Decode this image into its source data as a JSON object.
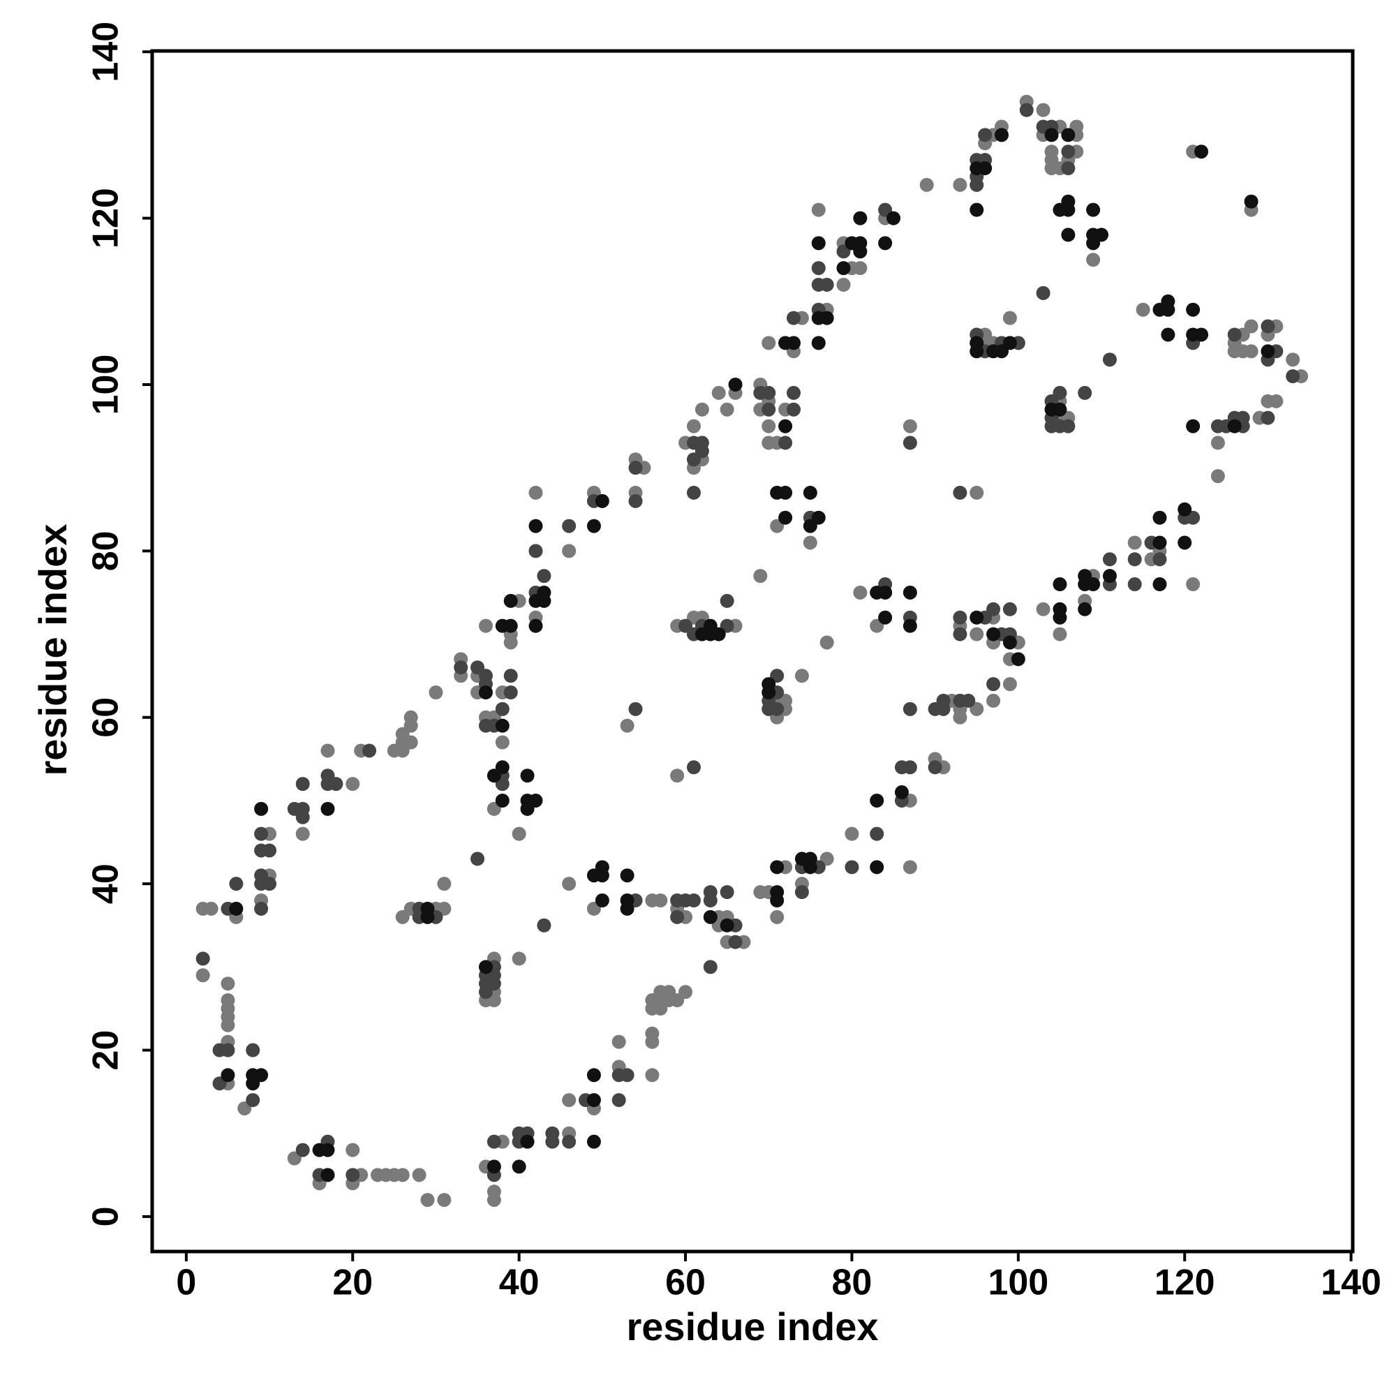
{
  "chart_data": {
    "type": "scatter",
    "xlabel": "residue index",
    "ylabel": "residue index",
    "xlim": [
      -4.1,
      140.2
    ],
    "ylim": [
      -4.2,
      140.1
    ],
    "xticks": [
      0,
      20,
      40,
      60,
      80,
      100,
      120,
      140
    ],
    "yticks": [
      0,
      20,
      40,
      60,
      80,
      100,
      120,
      140
    ],
    "series": [
      {
        "color": "#7a7a7a",
        "x": [
          2,
          3,
          6,
          2,
          5,
          5,
          5,
          5,
          5,
          5,
          5,
          7,
          10,
          10,
          9,
          14,
          17,
          20,
          21,
          25,
          26,
          26,
          26,
          27,
          27,
          27,
          30,
          26,
          27,
          30,
          31,
          31,
          33,
          33,
          35,
          35,
          36,
          36,
          37,
          38,
          38,
          39,
          39,
          40,
          37,
          40,
          37,
          37,
          37,
          36,
          40,
          42,
          42,
          46,
          49,
          54,
          55,
          54,
          46,
          49,
          53,
          56,
          59,
          60,
          59,
          60,
          61,
          62,
          61,
          62,
          65,
          64,
          59,
          61,
          62,
          66,
          64,
          65,
          64,
          67,
          65,
          66,
          69,
          70,
          69,
          70,
          70,
          71,
          72,
          70,
          73,
          74,
          69,
          71,
          75,
          71,
          71,
          72,
          72,
          74,
          77,
          69,
          70,
          71,
          72,
          74,
          77,
          76,
          77,
          79,
          80,
          79,
          81,
          84,
          89,
          93,
          80,
          87,
          87,
          81,
          83,
          87,
          90,
          91,
          92,
          93,
          93,
          95,
          93,
          95,
          95,
          97,
          97,
          100,
          99,
          97,
          99,
          96,
          96,
          97,
          99,
          96,
          97,
          98,
          101,
          103,
          103,
          104,
          104,
          104,
          105,
          105,
          106,
          107,
          107,
          107,
          109,
          105,
          105,
          106,
          103,
          105,
          109,
          108,
          114,
          116,
          117,
          121,
          115,
          121,
          128,
          124,
          124,
          129,
          130,
          131,
          126,
          126,
          127,
          127,
          128,
          128,
          130,
          131,
          133,
          134,
          16,
          20,
          36,
          37,
          37,
          29,
          31,
          28,
          26,
          25,
          24,
          23,
          21,
          20,
          13,
          38,
          46,
          46,
          49,
          52,
          52,
          56,
          56,
          56,
          56,
          56,
          57,
          57,
          57,
          58,
          58,
          59,
          60,
          57
        ],
        "y": [
          37,
          37,
          36,
          29,
          28,
          26,
          25,
          24,
          23,
          21,
          16,
          13,
          46,
          41,
          38,
          46,
          56,
          52,
          56,
          56,
          57,
          56,
          58,
          59,
          60,
          57,
          63,
          36,
          37,
          37,
          37,
          40,
          67,
          65,
          65,
          63,
          71,
          60,
          60,
          63,
          57,
          69,
          70,
          74,
          49,
          46,
          31,
          27,
          26,
          26,
          31,
          87,
          72,
          80,
          87,
          91,
          90,
          87,
          40,
          37,
          59,
          38,
          37,
          36,
          53,
          93,
          95,
          91,
          90,
          97,
          97,
          99,
          71,
          72,
          72,
          71,
          36,
          36,
          35,
          33,
          33,
          99,
          100,
          98,
          97,
          95,
          93,
          93,
          97,
          105,
          104,
          108,
          77,
          83,
          81,
          62,
          60,
          62,
          61,
          65,
          69,
          39,
          39,
          36,
          42,
          40,
          43,
          121,
          109,
          117,
          114,
          112,
          114,
          120,
          124,
          124,
          46,
          50,
          42,
          75,
          71,
          95,
          55,
          54,
          62,
          61,
          60,
          87,
          71,
          70,
          61,
          72,
          69,
          69,
          67,
          62,
          64,
          106,
          105,
          105,
          108,
          129,
          130,
          131,
          134,
          133,
          130,
          128,
          127,
          126,
          126,
          131,
          127,
          130,
          131,
          128,
          115,
          98,
          96,
          96,
          73,
          70,
          77,
          74,
          81,
          79,
          80,
          76,
          109,
          128,
          121,
          93,
          89,
          96,
          98,
          98,
          105,
          104,
          106,
          104,
          107,
          104,
          106,
          107,
          103,
          101,
          4,
          4,
          6,
          3,
          2,
          2,
          2,
          5,
          5,
          5,
          5,
          5,
          5,
          8,
          7,
          9,
          10,
          14,
          13,
          18,
          21,
          22,
          21,
          17,
          26,
          25,
          26,
          25,
          27,
          27,
          26,
          26,
          27,
          38
        ]
      },
      {
        "color": "#444444",
        "x": [
          5,
          6,
          2,
          4,
          5,
          4,
          8,
          8,
          9,
          9,
          10,
          9,
          9,
          10,
          9,
          13,
          14,
          14,
          14,
          17,
          18,
          17,
          22,
          28,
          28,
          30,
          33,
          35,
          36,
          36,
          36,
          37,
          38,
          39,
          39,
          38,
          38,
          35,
          36,
          36,
          36,
          37,
          37,
          37,
          42,
          42,
          43,
          46,
          49,
          54,
          54,
          43,
          54,
          54,
          59,
          60,
          61,
          59,
          61,
          61,
          62,
          61,
          62,
          61,
          60,
          61,
          62,
          65,
          65,
          63,
          63,
          65,
          66,
          66,
          63,
          69,
          70,
          70,
          72,
          73,
          73,
          73,
          75,
          70,
          70,
          71,
          71,
          71,
          76,
          74,
          74,
          76,
          76,
          77,
          76,
          79,
          84,
          80,
          83,
          86,
          86,
          87,
          87,
          84,
          87,
          87,
          90,
          90,
          91,
          91,
          93,
          94,
          93,
          93,
          93,
          96,
          97,
          98,
          99,
          99,
          97,
          95,
          96,
          98,
          100,
          95,
          95,
          95,
          96,
          96,
          101,
          103,
          104,
          106,
          106,
          103,
          104,
          104,
          104,
          105,
          105,
          106,
          108,
          111,
          111,
          111,
          114,
          114,
          116,
          117,
          120,
          121,
          121,
          124,
          125,
          126,
          127,
          127,
          130,
          126,
          130,
          130,
          131,
          133,
          14,
          17,
          16,
          20,
          37,
          37,
          40,
          40,
          41,
          44,
          44,
          46,
          48,
          52,
          53,
          52
        ],
        "y": [
          37,
          40,
          31,
          20,
          20,
          16,
          20,
          14,
          46,
          44,
          44,
          41,
          40,
          40,
          37,
          49,
          49,
          48,
          52,
          52,
          52,
          53,
          56,
          37,
          36,
          36,
          66,
          66,
          65,
          64,
          59,
          59,
          61,
          63,
          65,
          53,
          52,
          43,
          29,
          28,
          27,
          30,
          29,
          28,
          80,
          75,
          77,
          83,
          86,
          90,
          86,
          35,
          38,
          61,
          38,
          38,
          38,
          36,
          54,
          93,
          93,
          91,
          92,
          87,
          71,
          70,
          71,
          71,
          74,
          39,
          38,
          39,
          35,
          33,
          30,
          99,
          99,
          97,
          93,
          97,
          99,
          108,
          84,
          62,
          61,
          65,
          63,
          61,
          42,
          42,
          39,
          114,
          112,
          112,
          109,
          116,
          121,
          42,
          46,
          50,
          54,
          54,
          61,
          76,
          72,
          93,
          54,
          61,
          62,
          61,
          62,
          62,
          87,
          72,
          70,
          72,
          73,
          70,
          73,
          70,
          64,
          106,
          104,
          105,
          105,
          127,
          125,
          124,
          127,
          130,
          133,
          131,
          131,
          128,
          126,
          111,
          98,
          96,
          95,
          99,
          95,
          95,
          99,
          103,
          79,
          76,
          79,
          76,
          81,
          79,
          84,
          84,
          105,
          95,
          95,
          96,
          96,
          95,
          96,
          106,
          107,
          103,
          104,
          101,
          8,
          9,
          5,
          5,
          5,
          9,
          10,
          9,
          10,
          10,
          9,
          9,
          14,
          17,
          17,
          14
        ]
      },
      {
        "color": "#111111",
        "x": [
          6,
          5,
          8,
          9,
          8,
          9,
          17,
          29,
          29,
          36,
          38,
          38,
          39,
          39,
          37,
          38,
          38,
          41,
          41,
          42,
          41,
          36,
          42,
          42,
          43,
          43,
          42,
          49,
          50,
          49,
          50,
          50,
          50,
          53,
          53,
          53,
          62,
          63,
          63,
          64,
          63,
          65,
          66,
          72,
          72,
          73,
          71,
          72,
          72,
          75,
          76,
          75,
          70,
          70,
          71,
          71,
          71,
          74,
          75,
          75,
          76,
          76,
          77,
          76,
          80,
          81,
          81,
          79,
          81,
          84,
          85,
          83,
          83,
          86,
          83,
          84,
          84,
          87,
          87,
          95,
          97,
          99,
          100,
          95,
          95,
          97,
          98,
          99,
          95,
          96,
          98,
          95,
          104,
          106,
          105,
          106,
          106,
          106,
          109,
          109,
          110,
          109,
          104,
          105,
          105,
          105,
          105,
          108,
          108,
          109,
          108,
          111,
          117,
          117,
          117,
          120,
          120,
          117,
          118,
          118,
          118,
          121,
          121,
          122,
          121,
          122,
          128,
          126,
          130,
          16,
          17,
          17,
          37,
          41,
          40,
          49,
          49,
          49
        ],
        "y": [
          37,
          17,
          17,
          17,
          16,
          49,
          49,
          37,
          36,
          63,
          59,
          71,
          71,
          74,
          53,
          54,
          50,
          53,
          50,
          50,
          49,
          30,
          83,
          74,
          74,
          75,
          71,
          83,
          86,
          41,
          41,
          42,
          38,
          41,
          38,
          37,
          70,
          70,
          71,
          70,
          36,
          35,
          100,
          95,
          105,
          105,
          87,
          87,
          84,
          87,
          84,
          83,
          64,
          63,
          39,
          38,
          42,
          43,
          43,
          42,
          117,
          108,
          108,
          105,
          117,
          117,
          116,
          114,
          120,
          117,
          120,
          42,
          50,
          51,
          75,
          75,
          72,
          75,
          71,
          72,
          70,
          69,
          67,
          105,
          104,
          104,
          104,
          105,
          126,
          126,
          130,
          121,
          130,
          130,
          121,
          121,
          122,
          118,
          121,
          118,
          118,
          117,
          97,
          97,
          76,
          73,
          72,
          77,
          76,
          76,
          73,
          77,
          84,
          81,
          76,
          85,
          81,
          109,
          110,
          109,
          106,
          109,
          106,
          106,
          95,
          128,
          122,
          95,
          104,
          8,
          8,
          5,
          6,
          9,
          6,
          9,
          14,
          17
        ]
      }
    ]
  }
}
